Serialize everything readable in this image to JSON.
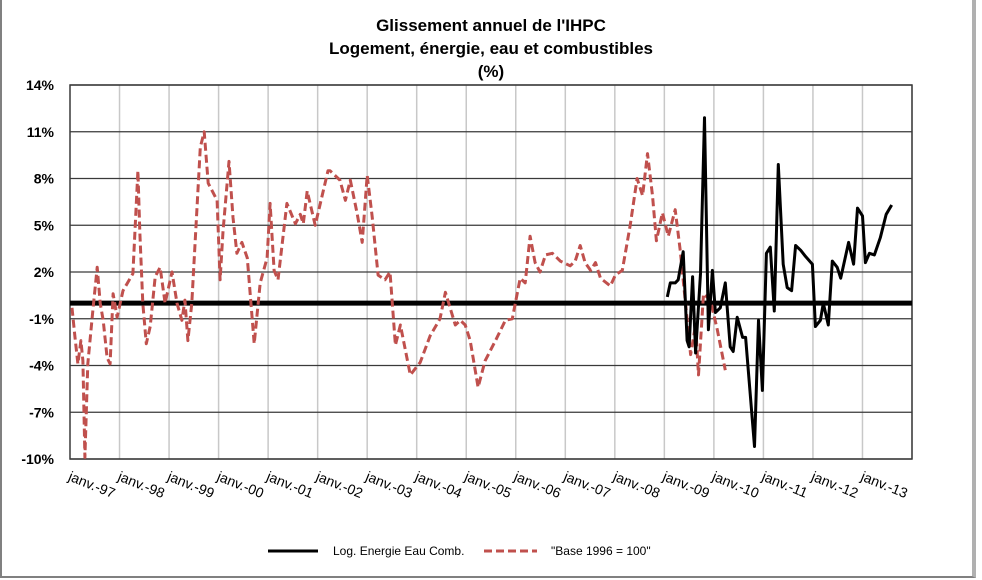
{
  "chart_data": {
    "type": "line",
    "title": [
      "Glissement annuel de l'IHPC",
      "Logement, énergie, eau et combustibles",
      "(%)"
    ],
    "xlabel": "",
    "ylabel": "",
    "xlim": [
      1996,
      2013
    ],
    "ylim": [
      -10,
      14
    ],
    "y_ticks": [
      14,
      11,
      8,
      5,
      2,
      -1,
      -4,
      -7,
      -10
    ],
    "y_tick_labels": [
      "14%",
      "11%",
      "8%",
      "5%",
      "2%",
      "-1%",
      "-4%",
      "-7%",
      "-10%"
    ],
    "x_ticks": [
      1997,
      1998,
      1999,
      2000,
      2001,
      2002,
      2003,
      2004,
      2005,
      2006,
      2007,
      2008,
      2009,
      2010,
      2011,
      2012,
      2013
    ],
    "x_tick_labels": [
      "janv.-97",
      "janv.-98",
      "janv.-99",
      "janv.-00",
      "janv.-01",
      "janv.-02",
      "janv.-03",
      "janv.-04",
      "janv.-05",
      "janv.-06",
      "janv.-07",
      "janv.-08",
      "janv.-09",
      "janv.-10",
      "janv.-11",
      "janv.-12",
      "janv.-13"
    ],
    "grid": true,
    "reference_line": 0,
    "legend_position": "bottom",
    "series": [
      {
        "name": "Log. Energie Eau Comb.",
        "color": "#000000",
        "style": "solid",
        "points": [
          [
            2008.06,
            0.4
          ],
          [
            2008.12,
            1.3
          ],
          [
            2008.22,
            1.3
          ],
          [
            2008.28,
            1.5
          ],
          [
            2008.38,
            3.3
          ],
          [
            2008.46,
            -2.4
          ],
          [
            2008.5,
            -2.8
          ],
          [
            2008.57,
            1.7
          ],
          [
            2008.63,
            -3.2
          ],
          [
            2008.73,
            1.9
          ],
          [
            2008.81,
            11.9
          ],
          [
            2008.89,
            -1.7
          ],
          [
            2008.97,
            2.1
          ],
          [
            2009.03,
            -0.6
          ],
          [
            2009.13,
            -0.3
          ],
          [
            2009.23,
            1.3
          ],
          [
            2009.33,
            -2.8
          ],
          [
            2009.39,
            -3.1
          ],
          [
            2009.47,
            -0.9
          ],
          [
            2009.58,
            -2.2
          ],
          [
            2009.64,
            -2.2
          ],
          [
            2009.82,
            -9.2
          ],
          [
            2009.9,
            -1.1
          ],
          [
            2009.98,
            -5.6
          ],
          [
            2010.06,
            3.2
          ],
          [
            2010.14,
            3.6
          ],
          [
            2010.22,
            -0.5
          ],
          [
            2010.3,
            8.9
          ],
          [
            2010.4,
            2.5
          ],
          [
            2010.48,
            1.0
          ],
          [
            2010.57,
            0.8
          ],
          [
            2010.65,
            3.7
          ],
          [
            2010.75,
            3.4
          ],
          [
            2010.85,
            3.0
          ],
          [
            2010.99,
            2.5
          ],
          [
            2011.05,
            -1.5
          ],
          [
            2011.15,
            -1.1
          ],
          [
            2011.21,
            0.0
          ],
          [
            2011.31,
            -1.4
          ],
          [
            2011.39,
            2.7
          ],
          [
            2011.49,
            2.3
          ],
          [
            2011.56,
            1.6
          ],
          [
            2011.72,
            3.9
          ],
          [
            2011.82,
            2.5
          ],
          [
            2011.9,
            6.1
          ],
          [
            2012.0,
            5.6
          ],
          [
            2012.06,
            2.6
          ],
          [
            2012.14,
            3.2
          ],
          [
            2012.24,
            3.1
          ],
          [
            2012.36,
            4.2
          ],
          [
            2012.48,
            5.7
          ],
          [
            2012.59,
            6.3
          ]
        ]
      },
      {
        "name": "\"Base 1996 = 100\"",
        "color": "#c0504d",
        "style": "dashed",
        "points": [
          [
            1996.04,
            -0.3
          ],
          [
            1996.1,
            -2.2
          ],
          [
            1996.16,
            -3.9
          ],
          [
            1996.22,
            -2.4
          ],
          [
            1996.26,
            -3.7
          ],
          [
            1996.3,
            -9.9
          ],
          [
            1996.36,
            -3.9
          ],
          [
            1996.46,
            -0.5
          ],
          [
            1996.55,
            2.3
          ],
          [
            1996.61,
            0
          ],
          [
            1996.67,
            -1.1
          ],
          [
            1996.75,
            -3.5
          ],
          [
            1996.81,
            -3.9
          ],
          [
            1996.87,
            0.6
          ],
          [
            1996.95,
            -0.9
          ],
          [
            1997.07,
            0.8
          ],
          [
            1997.27,
            1.9
          ],
          [
            1997.37,
            8.5
          ],
          [
            1997.41,
            4.6
          ],
          [
            1997.47,
            0
          ],
          [
            1997.54,
            -2.6
          ],
          [
            1997.62,
            -1.5
          ],
          [
            1997.72,
            1.7
          ],
          [
            1997.82,
            2.3
          ],
          [
            1997.92,
            0
          ],
          [
            1998.06,
            2.0
          ],
          [
            1998.16,
            0
          ],
          [
            1998.26,
            -1.1
          ],
          [
            1998.32,
            0.2
          ],
          [
            1998.38,
            -2.4
          ],
          [
            1998.46,
            0
          ],
          [
            1998.63,
            10
          ],
          [
            1998.71,
            11
          ],
          [
            1998.79,
            7.7
          ],
          [
            1998.97,
            6.6
          ],
          [
            1999.03,
            1.5
          ],
          [
            1999.09,
            4.6
          ],
          [
            1999.21,
            9.1
          ],
          [
            1999.29,
            5.5
          ],
          [
            1999.37,
            3.2
          ],
          [
            1999.47,
            3.9
          ],
          [
            1999.58,
            2.9
          ],
          [
            1999.72,
            -2.6
          ],
          [
            1999.84,
            1.3
          ],
          [
            1999.98,
            2.9
          ],
          [
            2000.04,
            6.4
          ],
          [
            2000.12,
            2.1
          ],
          [
            2000.2,
            1.5
          ],
          [
            2000.38,
            6.4
          ],
          [
            2000.55,
            5.1
          ],
          [
            2000.65,
            5.7
          ],
          [
            2000.71,
            5.1
          ],
          [
            2000.79,
            7.2
          ],
          [
            2000.95,
            5.0
          ],
          [
            2001.21,
            8.5
          ],
          [
            2001.25,
            8.5
          ],
          [
            2001.45,
            7.9
          ],
          [
            2001.56,
            6.6
          ],
          [
            2001.66,
            7.9
          ],
          [
            2001.8,
            5.7
          ],
          [
            2001.9,
            3.9
          ],
          [
            2002.0,
            8.2
          ],
          [
            2002.1,
            5.6
          ],
          [
            2002.22,
            1.8
          ],
          [
            2002.36,
            1.5
          ],
          [
            2002.46,
            2.0
          ],
          [
            2002.57,
            -2.7
          ],
          [
            2002.67,
            -1.4
          ],
          [
            2002.87,
            -4.6
          ],
          [
            2003.07,
            -3.8
          ],
          [
            2003.27,
            -2.1
          ],
          [
            2003.47,
            -1.0
          ],
          [
            2003.58,
            0.7
          ],
          [
            2003.78,
            -1.4
          ],
          [
            2003.88,
            -1.1
          ],
          [
            2003.98,
            -1.4
          ],
          [
            2004.08,
            -2.4
          ],
          [
            2004.24,
            -5.4
          ],
          [
            2004.38,
            -3.7
          ],
          [
            2004.59,
            -2.4
          ],
          [
            2004.79,
            -1.1
          ],
          [
            2004.93,
            -1.0
          ],
          [
            2005.09,
            1.6
          ],
          [
            2005.19,
            1.3
          ],
          [
            2005.29,
            4.3
          ],
          [
            2005.39,
            2.6
          ],
          [
            2005.49,
            2.0
          ],
          [
            2005.6,
            3.1
          ],
          [
            2005.74,
            3.2
          ],
          [
            2005.9,
            2.7
          ],
          [
            2006.1,
            2.4
          ],
          [
            2006.2,
            2.7
          ],
          [
            2006.3,
            3.7
          ],
          [
            2006.4,
            2.6
          ],
          [
            2006.51,
            2.1
          ],
          [
            2006.61,
            2.6
          ],
          [
            2006.71,
            1.6
          ],
          [
            2006.91,
            1.1
          ],
          [
            2007.01,
            1.8
          ],
          [
            2007.15,
            2.1
          ],
          [
            2007.31,
            5.0
          ],
          [
            2007.45,
            8.0
          ],
          [
            2007.56,
            6.9
          ],
          [
            2007.66,
            9.6
          ],
          [
            2007.76,
            6.9
          ],
          [
            2007.84,
            4.0
          ],
          [
            2007.96,
            5.8
          ],
          [
            2008.08,
            4.3
          ],
          [
            2008.22,
            6.0
          ],
          [
            2008.32,
            3.4
          ],
          [
            2008.42,
            0.2
          ],
          [
            2008.53,
            -3.3
          ],
          [
            2008.63,
            -1.4
          ],
          [
            2008.69,
            -4.6
          ],
          [
            2008.79,
            0.6
          ],
          [
            2008.93,
            0.2
          ],
          [
            2009.07,
            -1.7
          ],
          [
            2009.23,
            -4.3
          ]
        ]
      }
    ]
  }
}
